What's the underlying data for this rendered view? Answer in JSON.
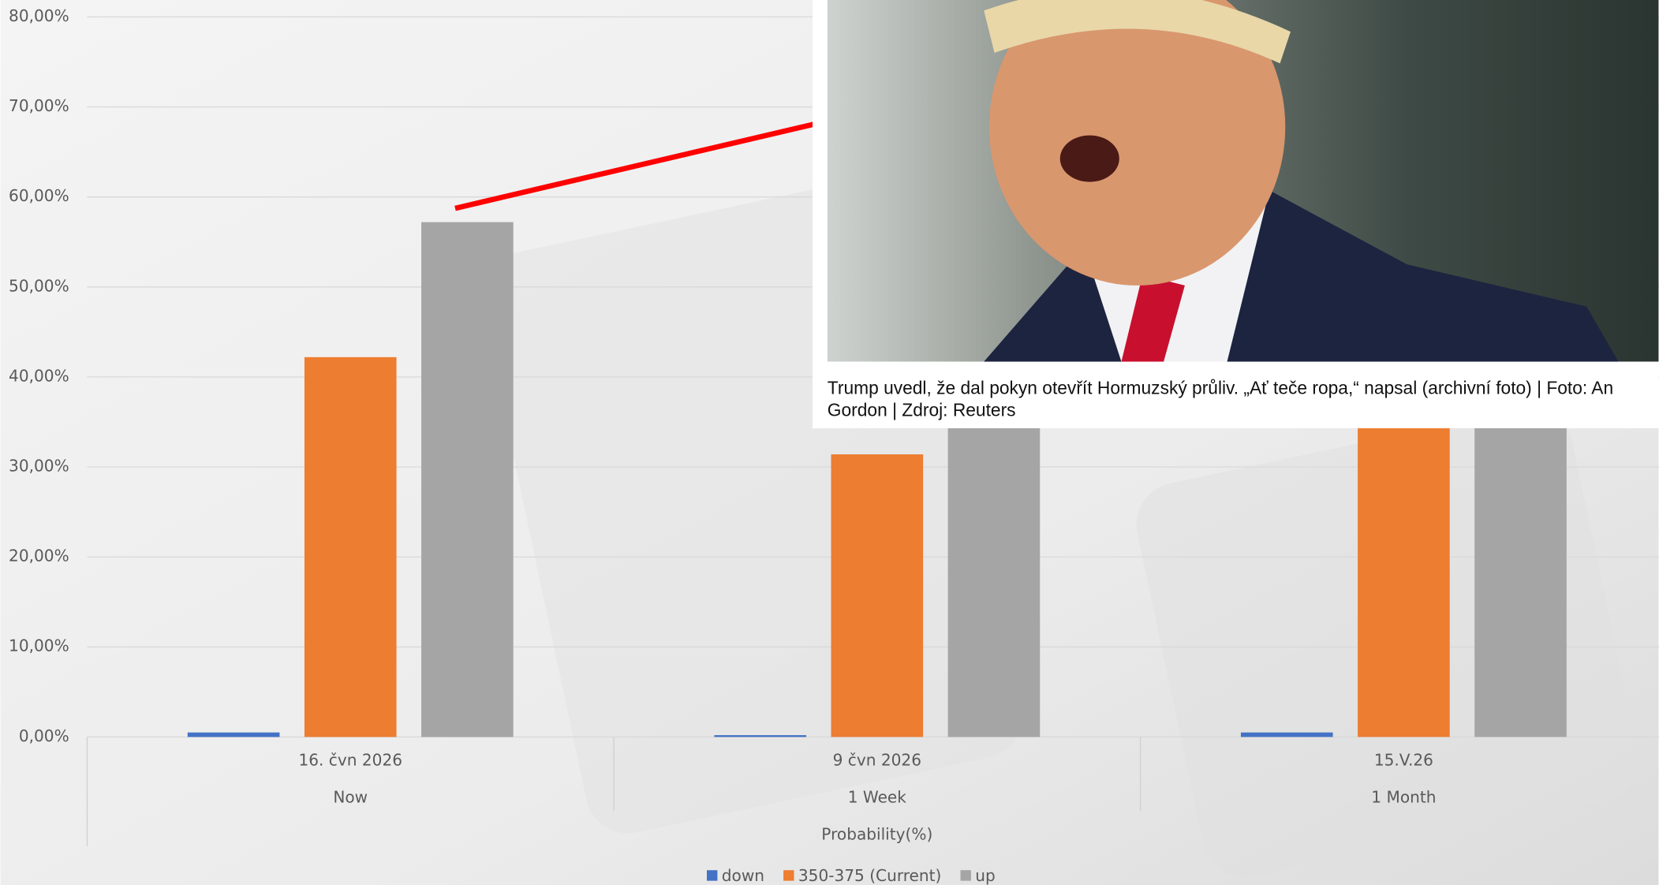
{
  "chart_data": {
    "type": "bar",
    "categories": [
      "16. čvn 2026",
      "9 čvn 2026",
      "15.V.26"
    ],
    "subcategories": [
      "Now",
      "1 Week",
      "1 Month"
    ],
    "x_label": "Probability(%)",
    "series": [
      {
        "name": "down",
        "color": "#4472c4",
        "values": [
          0.5,
          0.2,
          0.5
        ]
      },
      {
        "name": "350-375 (Current)",
        "color": "#ed7d31",
        "values": [
          42.2,
          31.4,
          40.5
        ]
      },
      {
        "name": "up",
        "color": "#a5a5a5",
        "values": [
          57.2,
          68.4,
          59.0
        ]
      }
    ],
    "ylim": [
      0,
      80
    ],
    "yticks": [
      {
        "value": 0,
        "label": "0,00%"
      },
      {
        "value": 10,
        "label": "10,00%"
      },
      {
        "value": 20,
        "label": "20,00%"
      },
      {
        "value": 30,
        "label": "30,00%"
      },
      {
        "value": 40,
        "label": "40,00%"
      },
      {
        "value": 50,
        "label": "50,00%"
      },
      {
        "value": 60,
        "label": "60,00%"
      },
      {
        "value": 70,
        "label": "70,00%"
      },
      {
        "value": 80,
        "label": "80,00%"
      }
    ],
    "grid": true,
    "legend": "bottom"
  },
  "photo": {
    "caption": [
      "Trump uvedl, že dal pokyn otevřít Hormuzský průliv. „Ať teče ropa,“ napsal (archivní foto) | Foto: An",
      "Gordon | Zdroj: Reuters"
    ]
  }
}
